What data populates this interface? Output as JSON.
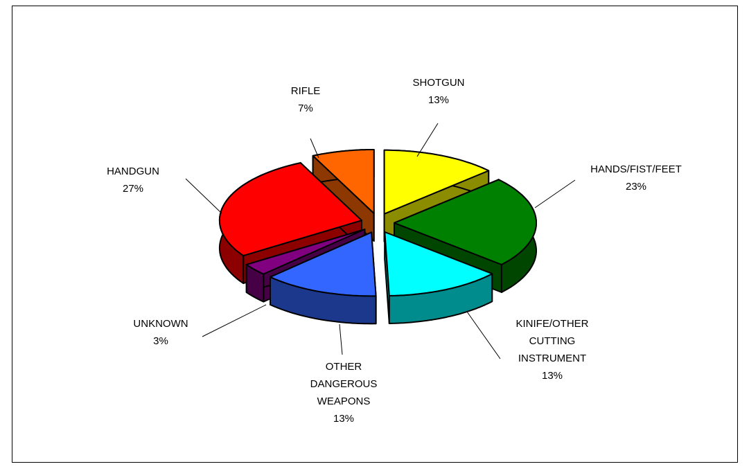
{
  "chart_data": {
    "type": "pie",
    "categories": [
      "SHOTGUN",
      "HANDS/FIST/FEET",
      "KINIFE/OTHER CUTTING INSTRUMENT",
      "OTHER DANGEROUS WEAPONS",
      "UNKNOWN",
      "HANDGUN",
      "RIFLE"
    ],
    "values": [
      13,
      23,
      13,
      13,
      3,
      27,
      7
    ],
    "value_labels": [
      "13%",
      "23%",
      "13%",
      "13%",
      "3%",
      "27%",
      "7%"
    ],
    "colors": [
      "#ffff00",
      "#008000",
      "#00ffff",
      "#3366ff",
      "#800080",
      "#ff0000",
      "#ff6600"
    ]
  }
}
